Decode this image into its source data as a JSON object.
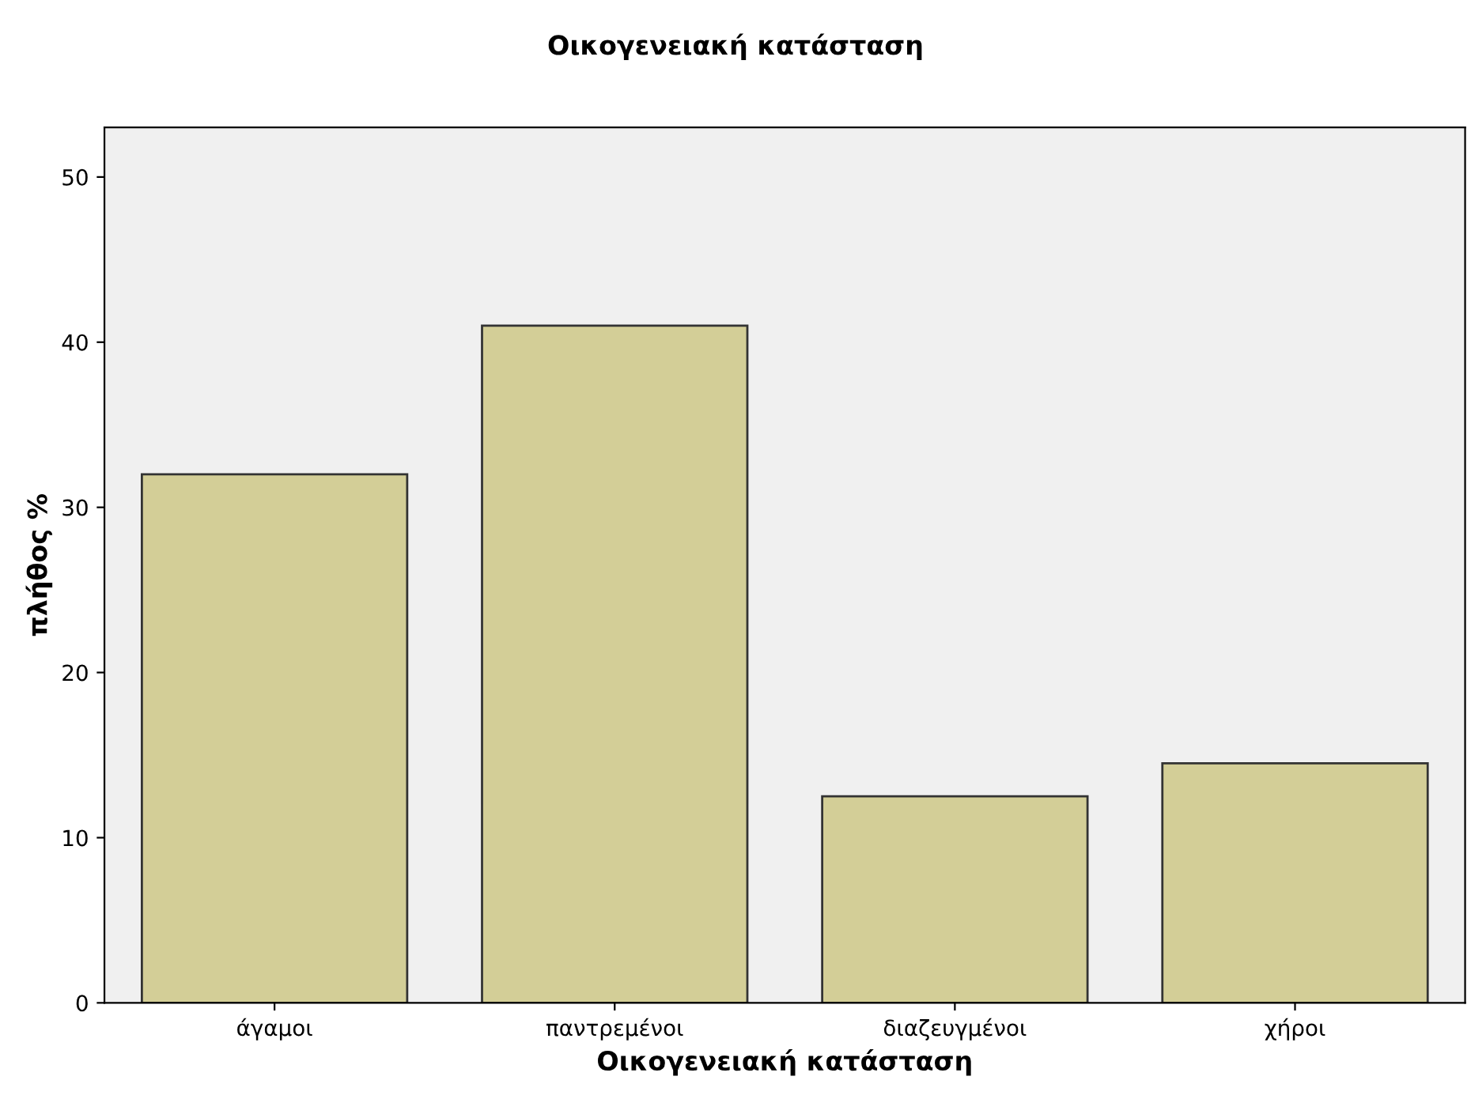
{
  "chart_data": {
    "type": "bar",
    "title": "Οικογενειακή κατάσταση",
    "xlabel": "Οικογενειακή κατάσταση",
    "ylabel": "πλήθος %",
    "categories": [
      "άγαμοι",
      "παντρεμένοι",
      "διαζευγμένοι",
      "χήροι"
    ],
    "values": [
      32,
      41,
      12.5,
      14.5
    ],
    "color": "#d3ce97",
    "ylim": [
      0,
      53
    ],
    "yticks": [
      0,
      10,
      20,
      30,
      40,
      50
    ],
    "grid": false
  }
}
